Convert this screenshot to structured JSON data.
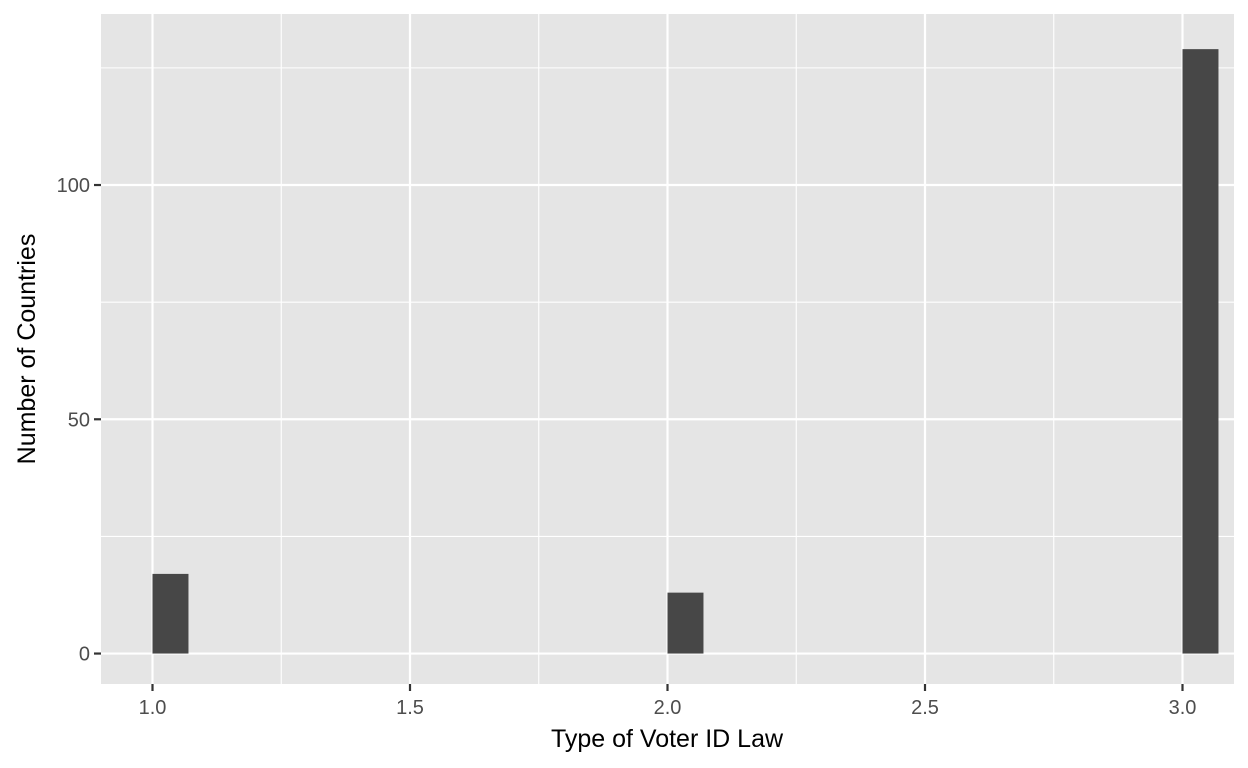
{
  "chart_data": {
    "type": "bar",
    "title": "",
    "xlabel": "Type of Voter ID Law",
    "ylabel": "Number of Countries",
    "xlim": [
      0.9,
      3.1
    ],
    "ylim": [
      -6.5,
      136.5
    ],
    "x_ticks": [
      1.0,
      1.5,
      2.0,
      2.5,
      3.0
    ],
    "x_tick_labels": [
      "1.0",
      "1.5",
      "2.0",
      "2.5",
      "3.0"
    ],
    "y_ticks": [
      0,
      50,
      100
    ],
    "y_tick_labels": [
      "0",
      "50",
      "100"
    ],
    "bars": [
      {
        "x": 1.0,
        "value": 17
      },
      {
        "x": 2.0,
        "value": 13
      },
      {
        "x": 3.0,
        "value": 129
      }
    ],
    "bar_color": "#474747",
    "panel_background": "#e5e5e5",
    "grid_color": "#ffffff",
    "grid": true
  }
}
